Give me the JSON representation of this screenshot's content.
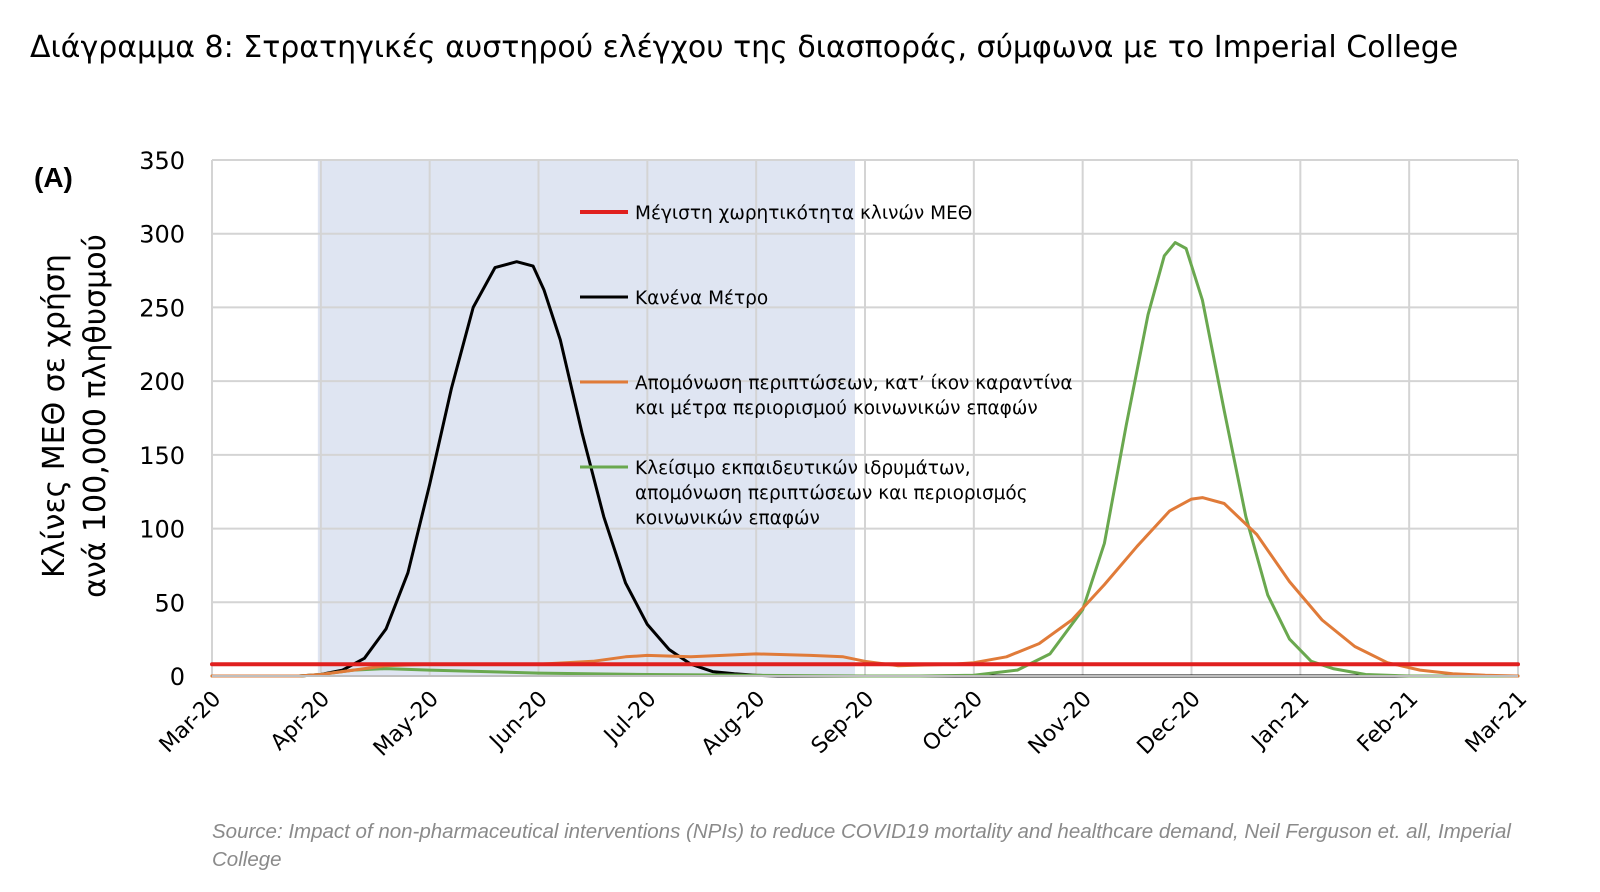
{
  "title": "Διάγραμμα 8: Στρατηγικές αυστηρού ελέγχου της διασποράς, σύμφωνα με το Imperial College",
  "source": "Source: Impact of non-pharmaceutical interventions (NPIs) to reduce COVID19 mortality and healthcare demand, Neil Ferguson et. all, Imperial College",
  "chart_data": {
    "type": "line",
    "panel_label": "(A)",
    "ylabel_lines": [
      "Κλίνες ΜΕΘ σε χρήση",
      "ανά 100,000 πληθυσμού"
    ],
    "ylim": [
      0,
      350
    ],
    "yticks": [
      0,
      50,
      100,
      150,
      200,
      250,
      300,
      350
    ],
    "x_unit": "months since Mar-20",
    "xlim": [
      0,
      12
    ],
    "xtick_labels": [
      "Mar-20",
      "Apr-20",
      "May-20",
      "Jun-20",
      "Jul-20",
      "Aug-20",
      "Sep-20",
      "Oct-20",
      "Nov-20",
      "Dec-20",
      "Jan-21",
      "Feb-21",
      "Mar-21"
    ],
    "grid": true,
    "shaded_period": {
      "from": "Apr-20",
      "to": "Sep-20",
      "color": "#dfe5f2"
    },
    "legend_placement": "center-top",
    "series": [
      {
        "name": "Μέγιστη χωρητικότητα κλινών ΜΕΘ",
        "color": "#e0201f",
        "x": [
          0,
          12
        ],
        "y": [
          8,
          8
        ]
      },
      {
        "name": "Κανένα Μέτρο",
        "color": "#000000",
        "x": [
          0,
          0.8,
          1.0,
          1.2,
          1.4,
          1.6,
          1.8,
          2.0,
          2.2,
          2.4,
          2.6,
          2.8,
          2.95,
          3.05,
          3.2,
          3.4,
          3.6,
          3.8,
          4.0,
          4.2,
          4.4,
          4.6,
          4.8,
          5.0,
          5.2,
          12
        ],
        "y": [
          0,
          0,
          1,
          4,
          12,
          32,
          70,
          130,
          195,
          250,
          277,
          281,
          278,
          262,
          228,
          165,
          108,
          63,
          35,
          18,
          8,
          3,
          1.5,
          0.5,
          0,
          0
        ]
      },
      {
        "name": "Απομόνωση περιπτώσεων, κατ’ ίκον καραντίνα και μέτρα περιορισμού κοινωνικών επαφών",
        "color": "#e07b39",
        "x": [
          0,
          0.8,
          1.0,
          1.3,
          1.6,
          2.0,
          2.5,
          3.0,
          3.5,
          3.8,
          4.0,
          4.4,
          5.0,
          5.5,
          5.8,
          6.0,
          6.3,
          6.8,
          7.0,
          7.3,
          7.6,
          7.9,
          8.2,
          8.5,
          8.8,
          9.0,
          9.1,
          9.3,
          9.6,
          9.9,
          10.2,
          10.5,
          10.8,
          11.1,
          11.4,
          11.7,
          12
        ],
        "y": [
          0,
          0,
          1,
          4,
          7,
          8,
          8,
          8,
          10,
          13,
          14,
          13,
          15,
          14,
          13,
          10,
          7,
          8,
          9,
          13,
          22,
          38,
          62,
          88,
          112,
          120,
          121,
          117,
          96,
          64,
          38,
          20,
          9,
          4,
          1.5,
          0.5,
          0
        ]
      },
      {
        "name": "Κλείσιμο εκπαιδευτικών ιδρυμάτων, απομόνωση περιπτώσεων και περιορισμός κοινωνικών επαφών",
        "color": "#6aa84f",
        "x": [
          0,
          0.8,
          1.0,
          1.3,
          1.6,
          2.0,
          3.0,
          4.0,
          5.0,
          6.0,
          6.5,
          7.0,
          7.4,
          7.7,
          8.0,
          8.2,
          8.4,
          8.6,
          8.75,
          8.85,
          8.95,
          9.1,
          9.3,
          9.5,
          9.7,
          9.9,
          10.1,
          10.3,
          10.6,
          11.0,
          12
        ],
        "y": [
          0,
          0,
          1,
          4,
          5,
          4,
          2,
          1,
          0.5,
          0,
          0,
          0.5,
          4,
          15,
          45,
          90,
          170,
          245,
          285,
          294,
          290,
          255,
          180,
          108,
          55,
          25,
          10,
          5,
          1,
          0,
          0
        ]
      }
    ]
  }
}
